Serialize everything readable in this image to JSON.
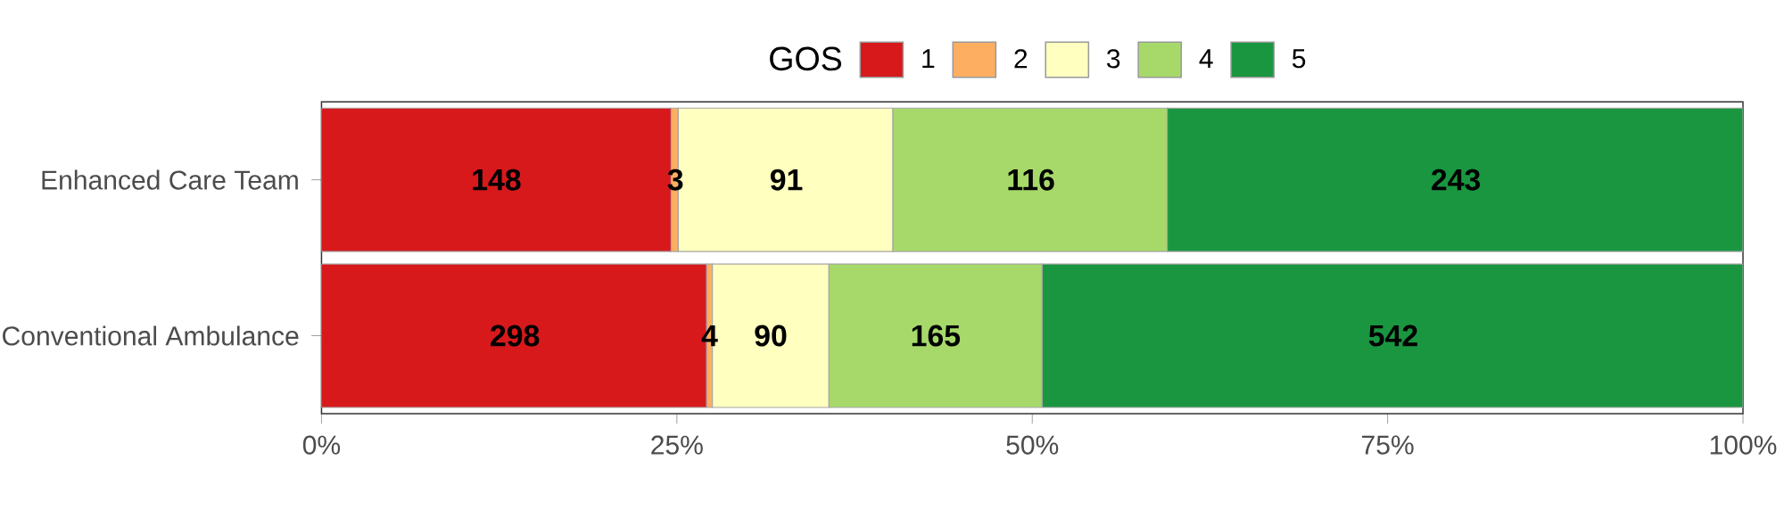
{
  "chart_data": {
    "type": "bar",
    "orientation": "horizontal",
    "stacked": true,
    "categories": [
      "Enhanced Care Team",
      "Conventional Ambulance"
    ],
    "legend_title": "GOS",
    "legend": "top",
    "series": [
      {
        "name": "1",
        "color": "#d7191c",
        "values": [
          24.6,
          27.1
        ]
      },
      {
        "name": "2",
        "color": "#fdae61",
        "values": [
          0.5,
          0.4
        ]
      },
      {
        "name": "3",
        "color": "#ffffbf",
        "values": [
          15.1,
          8.2
        ]
      },
      {
        "name": "4",
        "color": "#a6d96a",
        "values": [
          19.3,
          15.0
        ]
      },
      {
        "name": "5",
        "color": "#1a9641",
        "values": [
          40.5,
          49.3
        ]
      }
    ],
    "annotations": [
      {
        "text": "148",
        "x": 12.3,
        "y": "Enhanced Care Team"
      },
      {
        "text": "3",
        "x": 24.9,
        "y": "Enhanced Care Team"
      },
      {
        "text": "91",
        "x": 32.7,
        "y": "Enhanced Care Team"
      },
      {
        "text": "116",
        "x": 49.9,
        "y": "Enhanced Care Team"
      },
      {
        "text": "243",
        "x": 79.8,
        "y": "Enhanced Care Team"
      },
      {
        "text": "298",
        "x": 13.6,
        "y": "Conventional Ambulance"
      },
      {
        "text": "4",
        "x": 27.3,
        "y": "Conventional Ambulance"
      },
      {
        "text": "90",
        "x": 31.6,
        "y": "Conventional Ambulance"
      },
      {
        "text": "165",
        "x": 43.2,
        "y": "Conventional Ambulance"
      },
      {
        "text": "542",
        "x": 75.4,
        "y": "Conventional Ambulance"
      }
    ],
    "xlim": [
      0,
      100
    ],
    "xticks": [
      {
        "value": 0,
        "label": "0%"
      },
      {
        "value": 25,
        "label": "25%"
      },
      {
        "value": 50,
        "label": "50%"
      },
      {
        "value": 75,
        "label": "75%"
      },
      {
        "value": 100,
        "label": "100%"
      }
    ]
  }
}
